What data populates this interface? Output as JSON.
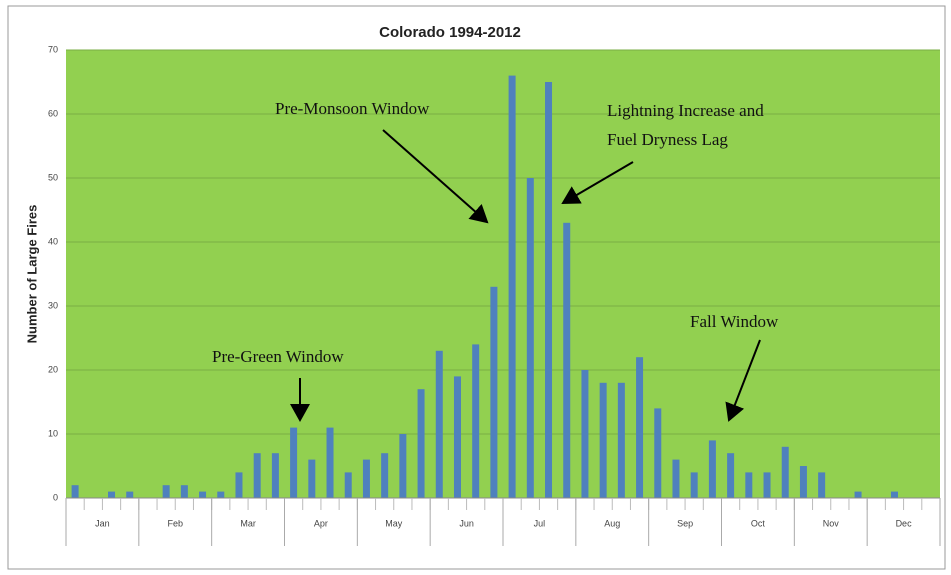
{
  "chart_data": {
    "type": "bar",
    "title": "Colorado 1994-2012",
    "ylabel": "Number of Large Fires",
    "categories": [
      null,
      null,
      null,
      null,
      null,
      null,
      null,
      null,
      null,
      null,
      null,
      null,
      null,
      null,
      null,
      null,
      null,
      null,
      null,
      null,
      null,
      null,
      null,
      null,
      null,
      null,
      null,
      null,
      null,
      null,
      null,
      null,
      null,
      null,
      null,
      null,
      null,
      null,
      null,
      null,
      null,
      null,
      null,
      null,
      null,
      null,
      null,
      null
    ],
    "values": [
      2,
      0,
      1,
      1,
      0,
      2,
      2,
      1,
      1,
      4,
      7,
      7,
      11,
      6,
      11,
      4,
      6,
      7,
      10,
      17,
      23,
      19,
      24,
      33,
      66,
      50,
      65,
      43,
      20,
      18,
      18,
      22,
      14,
      6,
      4,
      9,
      7,
      4,
      4,
      8,
      5,
      4,
      0,
      1,
      0,
      1,
      0,
      0
    ],
    "x_group_labels": [
      "Jan",
      "Feb",
      "Mar",
      "Apr",
      "May",
      "Jun",
      "Jul",
      "Aug",
      "Sep",
      "Oct",
      "Nov",
      "Dec"
    ],
    "color": "#4f81bd",
    "background": "#92d050",
    "ylim": [
      0,
      70
    ],
    "yticks": [
      0,
      10,
      20,
      30,
      40,
      50,
      60,
      70
    ],
    "grid": true,
    "annotations": [
      {
        "lines": [
          "Pre-Monsoon Window"
        ]
      },
      {
        "lines": [
          "Lightning Increase and",
          "Fuel Dryness Lag"
        ]
      },
      {
        "lines": [
          "Fall Window"
        ]
      },
      {
        "lines": [
          "Pre-Green Window"
        ]
      }
    ]
  }
}
